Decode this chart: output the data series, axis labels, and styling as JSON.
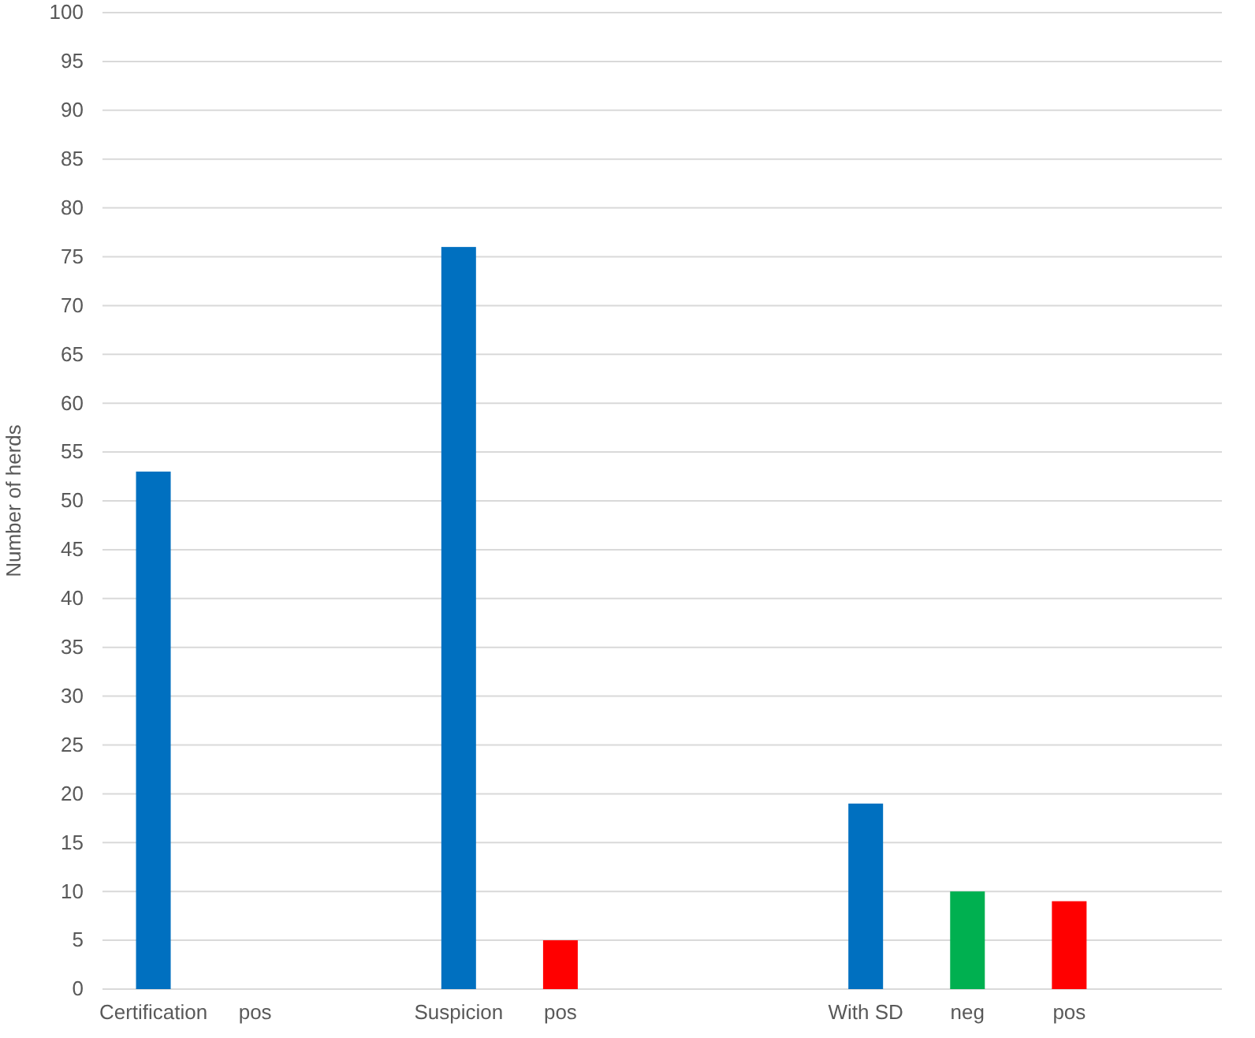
{
  "chart_data": {
    "type": "bar",
    "ylabel": "Number of herds",
    "categories": [
      "Certification",
      "pos",
      null,
      "Suspicion",
      "pos",
      null,
      null,
      "With SD",
      "neg",
      "pos",
      null
    ],
    "values": [
      53,
      null,
      null,
      76,
      5,
      null,
      null,
      19,
      10,
      9,
      null
    ],
    "colors": [
      "#0070c0",
      null,
      null,
      "#0070c0",
      "#ff0000",
      null,
      null,
      "#0070c0",
      "#00b050",
      "#ff0000",
      null
    ],
    "ylim": [
      0,
      100
    ],
    "yticks": [
      0,
      5,
      10,
      15,
      20,
      25,
      30,
      35,
      40,
      45,
      50,
      55,
      60,
      65,
      70,
      75,
      80,
      85,
      90,
      95,
      100
    ],
    "grid": "y"
  }
}
